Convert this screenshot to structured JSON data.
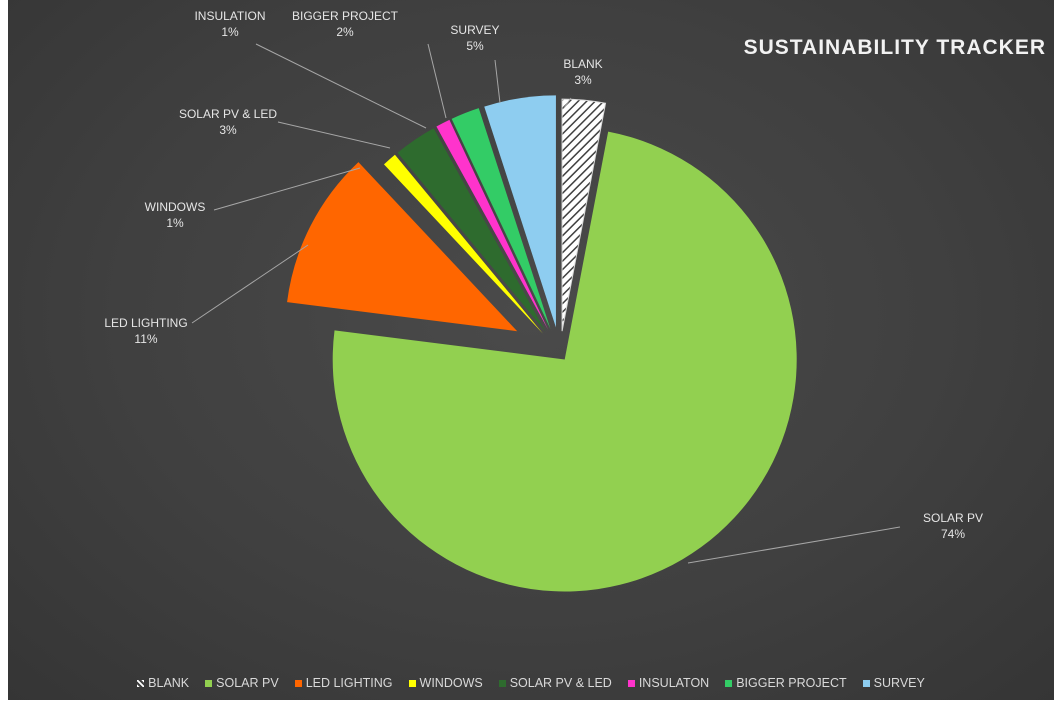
{
  "chart_data": {
    "type": "pie",
    "title": "SUSTAINABILITY TRACKER",
    "slices": [
      {
        "name": "BLANK",
        "legend": "BLANK",
        "value": 3,
        "label": "3%",
        "color": "#ffffff",
        "pattern": "hatch"
      },
      {
        "name": "SOLAR PV",
        "legend": "SOLAR PV",
        "value": 74,
        "label": "74%",
        "color": "#92d050"
      },
      {
        "name": "LED LIGHTING",
        "legend": "LED LIGHTING",
        "value": 11,
        "label": "11%",
        "color": "#ff6600"
      },
      {
        "name": "WINDOWS",
        "legend": "WINDOWS",
        "value": 1,
        "label": "1%",
        "color": "#ffff00"
      },
      {
        "name": "SOLAR PV & LED",
        "legend": "SOLAR PV & LED",
        "value": 3,
        "label": "3%",
        "color": "#2e6b2e"
      },
      {
        "name": "INSULATION",
        "legend": "INSULATON",
        "value": 1,
        "label": "1%",
        "color": "#ff33cc"
      },
      {
        "name": "BIGGER PROJECT",
        "legend": "BIGGER PROJECT",
        "value": 2,
        "label": "2%",
        "color": "#33cc66"
      },
      {
        "name": "SURVEY",
        "legend": "SURVEY",
        "value": 5,
        "label": "5%",
        "color": "#8ecdf0"
      }
    ],
    "legend_position": "bottom"
  }
}
